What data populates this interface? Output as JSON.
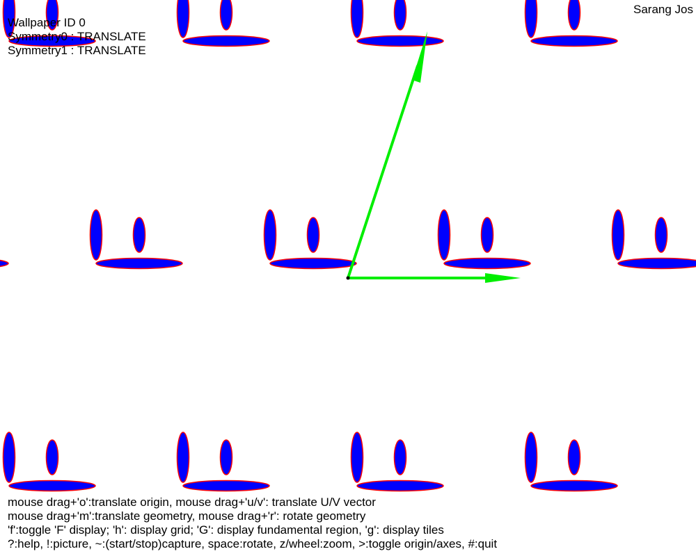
{
  "window": {
    "author": "Sarang Jos"
  },
  "info": {
    "wallpaper_id": "Wallpaper ID 0",
    "symmetry0": "Symmetry0 : TRANSLATE",
    "symmetry1": "Symmetry1 : TRANSLATE"
  },
  "help": {
    "line1": "mouse drag+'o':translate origin, mouse drag+'u/v': translate U/V vector",
    "line2": "mouse drag+'m':translate geometry, mouse drag+'r': rotate geometry",
    "line3": "'f':toggle 'F' display; 'h': display grid; 'G': display fundamental region, 'g': display tiles",
    "line4": "?:help, !:picture, ~:(start/stop)capture, space:rotate, z/wheel:zoom, >:toggle origin/axes, #:quit"
  },
  "colors": {
    "motif_fill": "#0000ff",
    "motif_stroke": "#ff0000",
    "axis": "#00ee00",
    "origin": "#000000",
    "background": "#ffffff"
  },
  "icons": {
    "origin": "origin-dot-icon",
    "u_vector": "u-vector-arrow-icon",
    "v_vector": "v-vector-arrow-icon"
  }
}
